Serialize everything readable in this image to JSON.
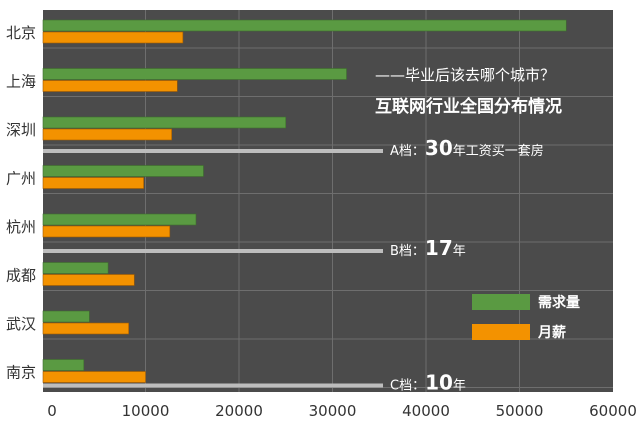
{
  "chart_data": {
    "type": "bar",
    "orientation": "horizontal",
    "title": "互联网行业全国分布情况",
    "subtitle": "——毕业后该去哪个城市？",
    "categories": [
      "北京",
      "上海",
      "深圳",
      "广州",
      "杭州",
      "成都",
      "武汉",
      "南京"
    ],
    "series": [
      {
        "name": "需求量",
        "color": "#5a9a42",
        "values": [
          55000,
          31500,
          25000,
          16200,
          15400,
          6000,
          4000,
          3400
        ]
      },
      {
        "name": "月薪",
        "color": "#f39200",
        "values": [
          14000,
          13400,
          12800,
          9800,
          12600,
          8800,
          8200,
          10000
        ]
      }
    ],
    "xlim": [
      0,
      60000
    ],
    "xticks": [
      "0",
      "10000",
      "20000",
      "30000",
      "40000",
      "50000",
      "60000"
    ],
    "grid": true,
    "legend": "right",
    "background": "#4b4b4b",
    "annotations": [
      {
        "prefix": "A档：",
        "number": "30",
        "suffix": "年工资买一套房",
        "after_category": "深圳"
      },
      {
        "prefix": "B档：",
        "number": "17",
        "suffix": "年",
        "after_category": "杭州"
      },
      {
        "prefix": "C档：",
        "number": "10",
        "suffix": "年",
        "after_category": "南京"
      }
    ]
  }
}
